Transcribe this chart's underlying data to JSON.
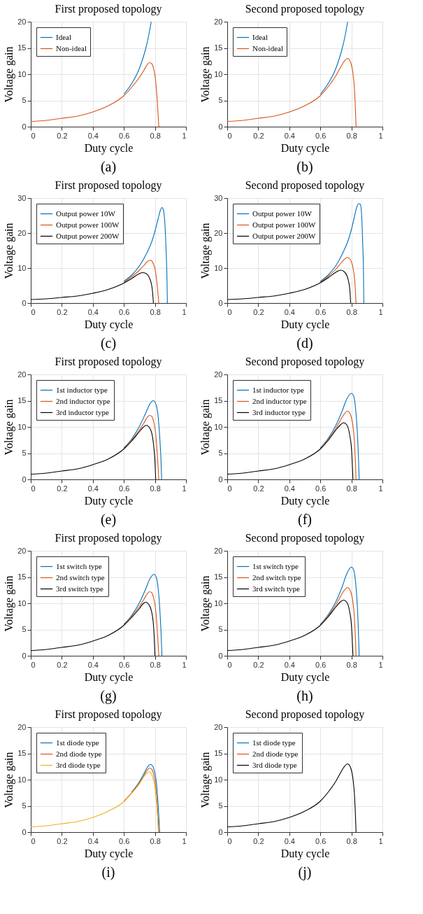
{
  "chart_data": [
    {
      "type": "line",
      "title": "First proposed topology",
      "xlabel": "Duty cycle",
      "ylabel": "Voltage gain",
      "annotations": [
        "(a)"
      ],
      "xlim": [
        0,
        1
      ],
      "ylim": [
        0,
        20
      ],
      "xticks": [
        0,
        0.2,
        0.4,
        0.6,
        0.8,
        1
      ],
      "yticks": [
        0,
        5,
        10,
        15,
        20
      ],
      "grid": true,
      "legend": "top left",
      "series": [
        {
          "name": "Ideal",
          "color": "#0072bd",
          "x": [
            0.6,
            0.65,
            0.7,
            0.72,
            0.74,
            0.76,
            0.776
          ],
          "values": [
            6.2,
            8.2,
            11.1,
            12.8,
            14.8,
            17.4,
            20
          ]
        },
        {
          "name": "Non-ideal",
          "color": "#d95319",
          "x": [
            0,
            0.1,
            0.2,
            0.3,
            0.4,
            0.5,
            0.6,
            0.65,
            0.7,
            0.73,
            0.75,
            0.765,
            0.78,
            0.79,
            0.8,
            0.81,
            0.82,
            0.825
          ],
          "values": [
            1,
            1.2,
            1.6,
            2.0,
            2.8,
            4.0,
            5.9,
            7.5,
            9.4,
            10.8,
            11.8,
            12.2,
            12.0,
            11.2,
            9.8,
            7.0,
            2.5,
            0
          ]
        }
      ]
    },
    {
      "type": "line",
      "title": "Second proposed topology",
      "xlabel": "Duty cycle",
      "ylabel": "Voltage gain",
      "annotations": [
        "(b)"
      ],
      "xlim": [
        0,
        1
      ],
      "ylim": [
        0,
        20
      ],
      "xticks": [
        0,
        0.2,
        0.4,
        0.6,
        0.8,
        1
      ],
      "yticks": [
        0,
        5,
        10,
        15,
        20
      ],
      "grid": true,
      "legend": "top left",
      "series": [
        {
          "name": "Ideal",
          "color": "#0072bd",
          "x": [
            0.6,
            0.65,
            0.7,
            0.72,
            0.74,
            0.76,
            0.776
          ],
          "values": [
            6.2,
            8.2,
            11.1,
            12.8,
            14.8,
            17.4,
            20
          ]
        },
        {
          "name": "Non-ideal",
          "color": "#d95319",
          "x": [
            0,
            0.1,
            0.2,
            0.3,
            0.4,
            0.5,
            0.6,
            0.65,
            0.7,
            0.73,
            0.75,
            0.775,
            0.79,
            0.8,
            0.81,
            0.82,
            0.825,
            0.83
          ],
          "values": [
            1,
            1.2,
            1.6,
            2.0,
            2.8,
            4.0,
            5.9,
            7.6,
            9.7,
            11.3,
            12.3,
            13.0,
            12.6,
            11.8,
            10.2,
            7.0,
            4.0,
            0
          ]
        }
      ]
    },
    {
      "type": "line",
      "title": "First proposed topology",
      "xlabel": "Duty cycle",
      "ylabel": "Voltage gain",
      "annotations": [
        "(c)"
      ],
      "xlim": [
        0,
        1
      ],
      "ylim": [
        0,
        30
      ],
      "xticks": [
        0,
        0.2,
        0.4,
        0.6,
        0.8,
        1
      ],
      "yticks": [
        0,
        10,
        20,
        30
      ],
      "grid": true,
      "legend": "top left",
      "series": [
        {
          "name": "Output power 10W",
          "color": "#0072bd",
          "x": [
            0.6,
            0.65,
            0.7,
            0.75,
            0.78,
            0.8,
            0.82,
            0.835,
            0.845,
            0.855,
            0.865,
            0.872,
            0.878,
            0.88
          ],
          "values": [
            6.2,
            8.0,
            10.6,
            14.5,
            17.6,
            20.5,
            24,
            26.5,
            27.3,
            26.5,
            22,
            15,
            6,
            0
          ]
        },
        {
          "name": "Output power 100W",
          "color": "#d95319",
          "x": [
            0.6,
            0.65,
            0.7,
            0.73,
            0.75,
            0.765,
            0.78,
            0.79,
            0.8,
            0.81,
            0.82,
            0.825
          ],
          "values": [
            5.9,
            7.5,
            9.4,
            10.8,
            11.8,
            12.2,
            12.0,
            11.2,
            9.8,
            7.0,
            2.5,
            0
          ]
        },
        {
          "name": "Output power 200W",
          "color": "#000000",
          "x": [
            0,
            0.1,
            0.2,
            0.3,
            0.4,
            0.5,
            0.6,
            0.65,
            0.7,
            0.72,
            0.74,
            0.76,
            0.77,
            0.78,
            0.785,
            0.79
          ],
          "values": [
            1,
            1.2,
            1.6,
            2.0,
            2.8,
            3.9,
            5.7,
            7.0,
            8.4,
            8.7,
            8.5,
            7.6,
            6.6,
            4.8,
            3.0,
            0
          ]
        }
      ]
    },
    {
      "type": "line",
      "title": "Second proposed topology",
      "xlabel": "Duty cycle",
      "ylabel": "Voltage gain",
      "annotations": [
        "(d)"
      ],
      "xlim": [
        0,
        1
      ],
      "ylim": [
        0,
        30
      ],
      "xticks": [
        0,
        0.2,
        0.4,
        0.6,
        0.8,
        1
      ],
      "yticks": [
        0,
        10,
        20,
        30
      ],
      "grid": true,
      "legend": "top left",
      "series": [
        {
          "name": "Output power 10W",
          "color": "#0072bd",
          "x": [
            0.6,
            0.65,
            0.7,
            0.75,
            0.78,
            0.8,
            0.82,
            0.835,
            0.848,
            0.858,
            0.866,
            0.872,
            0.878,
            0.88
          ],
          "values": [
            6.2,
            8.0,
            10.7,
            14.8,
            18,
            21,
            24.8,
            27.5,
            28.4,
            28.2,
            25,
            18,
            8,
            0
          ]
        },
        {
          "name": "Output power 100W",
          "color": "#d95319",
          "x": [
            0.6,
            0.65,
            0.7,
            0.73,
            0.75,
            0.775,
            0.79,
            0.8,
            0.81,
            0.82,
            0.825,
            0.83
          ],
          "values": [
            5.9,
            7.6,
            9.7,
            11.3,
            12.3,
            13.0,
            12.6,
            11.8,
            10.2,
            7.0,
            4.0,
            0
          ]
        },
        {
          "name": "Output power 200W",
          "color": "#000000",
          "x": [
            0,
            0.1,
            0.2,
            0.3,
            0.4,
            0.5,
            0.6,
            0.65,
            0.7,
            0.73,
            0.75,
            0.77,
            0.78,
            0.79,
            0.795
          ],
          "values": [
            1,
            1.2,
            1.6,
            2.0,
            2.8,
            3.9,
            5.8,
            7.2,
            8.8,
            9.4,
            9.1,
            7.9,
            6.5,
            3.8,
            0
          ]
        }
      ]
    },
    {
      "type": "line",
      "title": "First proposed topology",
      "xlabel": "Duty cycle",
      "ylabel": "Voltage gain",
      "annotations": [
        "(e)"
      ],
      "xlim": [
        0,
        1
      ],
      "ylim": [
        0,
        20
      ],
      "xticks": [
        0,
        0.2,
        0.4,
        0.6,
        0.8,
        1
      ],
      "yticks": [
        0,
        5,
        10,
        15,
        20
      ],
      "grid": true,
      "legend": "top left",
      "series": [
        {
          "name": "1st inductor type",
          "color": "#0072bd",
          "x": [
            0.6,
            0.65,
            0.7,
            0.74,
            0.77,
            0.79,
            0.81,
            0.825,
            0.835,
            0.84,
            0.843
          ],
          "values": [
            6.0,
            7.7,
            10.1,
            12.6,
            14.5,
            15.0,
            14.0,
            10.5,
            6,
            3,
            0
          ]
        },
        {
          "name": "2nd inductor type",
          "color": "#d95319",
          "x": [
            0.6,
            0.65,
            0.7,
            0.73,
            0.75,
            0.765,
            0.78,
            0.79,
            0.8,
            0.81,
            0.82,
            0.825
          ],
          "values": [
            5.9,
            7.5,
            9.4,
            10.8,
            11.8,
            12.2,
            12.0,
            11.2,
            9.8,
            7.0,
            2.5,
            0
          ]
        },
        {
          "name": "3rd inductor type",
          "color": "#000000",
          "x": [
            0,
            0.1,
            0.2,
            0.3,
            0.4,
            0.5,
            0.6,
            0.65,
            0.7,
            0.72,
            0.745,
            0.77,
            0.785,
            0.795,
            0.8,
            0.805
          ],
          "values": [
            1,
            1.2,
            1.6,
            2.0,
            2.8,
            3.9,
            5.8,
            7.3,
            9.1,
            9.8,
            10.3,
            9.6,
            8.0,
            5.5,
            3.5,
            0
          ]
        }
      ]
    },
    {
      "type": "line",
      "title": "Second proposed topology",
      "xlabel": "Duty cycle",
      "ylabel": "Voltage gain",
      "annotations": [
        "(f)"
      ],
      "xlim": [
        0,
        1
      ],
      "ylim": [
        0,
        20
      ],
      "xticks": [
        0,
        0.2,
        0.4,
        0.6,
        0.8,
        1
      ],
      "yticks": [
        0,
        5,
        10,
        15,
        20
      ],
      "grid": true,
      "legend": "top left",
      "series": [
        {
          "name": "1st inductor type",
          "color": "#0072bd",
          "x": [
            0.6,
            0.65,
            0.7,
            0.74,
            0.77,
            0.8,
            0.815,
            0.83,
            0.84,
            0.845,
            0.85
          ],
          "values": [
            6.0,
            7.8,
            10.3,
            13,
            15.3,
            16.4,
            15.8,
            12.5,
            8,
            4.5,
            0
          ]
        },
        {
          "name": "2nd inductor type",
          "color": "#d95319",
          "x": [
            0.6,
            0.65,
            0.7,
            0.73,
            0.75,
            0.775,
            0.79,
            0.8,
            0.81,
            0.82,
            0.825,
            0.83
          ],
          "values": [
            5.9,
            7.6,
            9.7,
            11.3,
            12.3,
            13.0,
            12.6,
            11.8,
            10.2,
            7.0,
            4.0,
            0
          ]
        },
        {
          "name": "3rd inductor type",
          "color": "#000000",
          "x": [
            0,
            0.1,
            0.2,
            0.3,
            0.4,
            0.5,
            0.6,
            0.65,
            0.7,
            0.73,
            0.75,
            0.77,
            0.79,
            0.8,
            0.805,
            0.81
          ],
          "values": [
            1,
            1.2,
            1.6,
            2.0,
            2.8,
            3.9,
            5.8,
            7.4,
            9.4,
            10.4,
            10.8,
            10.4,
            8.3,
            6,
            3.5,
            0
          ]
        }
      ]
    },
    {
      "type": "line",
      "title": "First proposed topology",
      "xlabel": "Duty cycle",
      "ylabel": "Voltage gain",
      "annotations": [
        "(g)"
      ],
      "xlim": [
        0,
        1
      ],
      "ylim": [
        0,
        20
      ],
      "xticks": [
        0,
        0.2,
        0.4,
        0.6,
        0.8,
        1
      ],
      "yticks": [
        0,
        5,
        10,
        15,
        20
      ],
      "grid": true,
      "legend": "top left",
      "series": [
        {
          "name": "1st switch type",
          "color": "#0072bd",
          "x": [
            0.6,
            0.65,
            0.7,
            0.74,
            0.77,
            0.795,
            0.81,
            0.825,
            0.835,
            0.84,
            0.845
          ],
          "values": [
            6.0,
            7.7,
            10.1,
            12.7,
            14.8,
            15.5,
            14.8,
            11.5,
            7,
            4,
            0
          ]
        },
        {
          "name": "2nd switch type",
          "color": "#d95319",
          "x": [
            0.6,
            0.65,
            0.7,
            0.73,
            0.75,
            0.765,
            0.78,
            0.79,
            0.8,
            0.81,
            0.82,
            0.825
          ],
          "values": [
            5.9,
            7.5,
            9.4,
            10.8,
            11.8,
            12.2,
            12.0,
            11.2,
            9.8,
            7.0,
            2.5,
            0
          ]
        },
        {
          "name": "3rd switch type",
          "color": "#000000",
          "x": [
            0,
            0.1,
            0.2,
            0.3,
            0.4,
            0.5,
            0.6,
            0.65,
            0.7,
            0.72,
            0.74,
            0.76,
            0.775,
            0.79,
            0.795,
            0.8
          ],
          "values": [
            1,
            1.2,
            1.6,
            2.0,
            2.8,
            3.9,
            5.8,
            7.3,
            9.0,
            9.8,
            10.2,
            9.8,
            8.8,
            6.0,
            3.8,
            0
          ]
        }
      ]
    },
    {
      "type": "line",
      "title": "Second proposed topology",
      "xlabel": "Duty cycle",
      "ylabel": "Voltage gain",
      "annotations": [
        "(h)"
      ],
      "xlim": [
        0,
        1
      ],
      "ylim": [
        0,
        20
      ],
      "xticks": [
        0,
        0.2,
        0.4,
        0.6,
        0.8,
        1
      ],
      "yticks": [
        0,
        5,
        10,
        15,
        20
      ],
      "grid": true,
      "legend": "top left",
      "series": [
        {
          "name": "1st switch type",
          "color": "#0072bd",
          "x": [
            0.6,
            0.65,
            0.7,
            0.74,
            0.77,
            0.8,
            0.815,
            0.83,
            0.84,
            0.845,
            0.85
          ],
          "values": [
            6.0,
            7.8,
            10.3,
            13.1,
            15.6,
            16.9,
            16.3,
            13,
            8.5,
            4.8,
            0
          ]
        },
        {
          "name": "2nd switch type",
          "color": "#d95319",
          "x": [
            0.6,
            0.65,
            0.7,
            0.73,
            0.75,
            0.775,
            0.79,
            0.8,
            0.81,
            0.82,
            0.825,
            0.83
          ],
          "values": [
            5.9,
            7.6,
            9.7,
            11.3,
            12.3,
            13.0,
            12.6,
            11.8,
            10.2,
            7.0,
            4.0,
            0
          ]
        },
        {
          "name": "3rd switch type",
          "color": "#000000",
          "x": [
            0,
            0.1,
            0.2,
            0.3,
            0.4,
            0.5,
            0.6,
            0.65,
            0.7,
            0.73,
            0.75,
            0.77,
            0.79,
            0.8,
            0.805,
            0.81
          ],
          "values": [
            1,
            1.2,
            1.6,
            2.0,
            2.8,
            3.9,
            5.8,
            7.4,
            9.3,
            10.3,
            10.6,
            10.2,
            8.2,
            5.9,
            3.4,
            0
          ]
        }
      ]
    },
    {
      "type": "line",
      "title": "First proposed topology",
      "xlabel": "Duty cycle",
      "ylabel": "Voltage gain",
      "annotations": [
        "(i)"
      ],
      "xlim": [
        0,
        1
      ],
      "ylim": [
        0,
        20
      ],
      "xticks": [
        0,
        0.2,
        0.4,
        0.6,
        0.8,
        1
      ],
      "yticks": [
        0,
        5,
        10,
        15,
        20
      ],
      "grid": true,
      "legend": "top left",
      "series": [
        {
          "name": "1st diode type",
          "color": "#0072bd",
          "x": [
            0.65,
            0.7,
            0.73,
            0.75,
            0.77,
            0.785,
            0.8,
            0.81,
            0.82,
            0.826,
            0.83
          ],
          "values": [
            7.6,
            9.6,
            11.2,
            12.3,
            12.9,
            12.6,
            11.2,
            9.3,
            5.5,
            2.5,
            0
          ]
        },
        {
          "name": "2nd diode type",
          "color": "#d95319",
          "x": [
            0.6,
            0.65,
            0.7,
            0.73,
            0.75,
            0.765,
            0.78,
            0.79,
            0.8,
            0.81,
            0.82,
            0.825
          ],
          "values": [
            5.9,
            7.5,
            9.4,
            10.8,
            11.8,
            12.2,
            12.0,
            11.2,
            9.8,
            7.0,
            2.5,
            0
          ]
        },
        {
          "name": "3rd diode type",
          "color": "#edb120",
          "x": [
            0,
            0.1,
            0.2,
            0.3,
            0.4,
            0.5,
            0.6,
            0.65,
            0.7,
            0.73,
            0.75,
            0.76,
            0.775,
            0.79,
            0.8,
            0.81,
            0.818,
            0.822
          ],
          "values": [
            1,
            1.2,
            1.6,
            2.0,
            2.8,
            4.0,
            5.8,
            7.4,
            9.2,
            10.6,
            11.3,
            11.5,
            11.2,
            10.0,
            8.5,
            5.8,
            2.5,
            0
          ]
        }
      ]
    },
    {
      "type": "line",
      "title": "Second proposed topology",
      "xlabel": "Duty cycle",
      "ylabel": "Voltage gain",
      "annotations": [
        "(j)"
      ],
      "xlim": [
        0,
        1
      ],
      "ylim": [
        0,
        20
      ],
      "xticks": [
        0,
        0.2,
        0.4,
        0.6,
        0.8,
        1
      ],
      "yticks": [
        0,
        5,
        10,
        15,
        20
      ],
      "grid": true,
      "legend": "top left",
      "series": [
        {
          "name": "1st diode type",
          "color": "#0072bd"
        },
        {
          "name": "2nd diode type",
          "color": "#d95319"
        },
        {
          "name": "3rd diode type",
          "color": "#000000",
          "x": [
            0,
            0.1,
            0.2,
            0.3,
            0.4,
            0.5,
            0.6,
            0.65,
            0.7,
            0.73,
            0.75,
            0.775,
            0.79,
            0.8,
            0.81,
            0.82,
            0.825,
            0.83
          ],
          "values": [
            1,
            1.2,
            1.6,
            2.0,
            2.8,
            4.0,
            5.9,
            7.6,
            9.7,
            11.3,
            12.3,
            13.0,
            12.6,
            11.8,
            10.2,
            7.0,
            4.0,
            0
          ]
        }
      ]
    }
  ]
}
